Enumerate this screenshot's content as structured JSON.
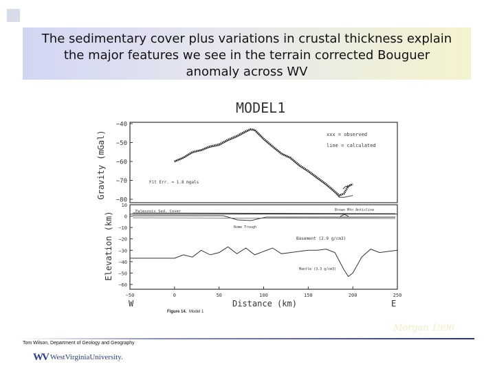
{
  "title": {
    "lines": [
      "The sedimentary cover plus variations in crustal thickness explain",
      "the major features we see in the terrain corrected Bouguer",
      "anomaly across WV"
    ]
  },
  "figure": {
    "model_title": "MODEL1",
    "gravity_label": "Gravity (mGal)",
    "elevation_label": "Elevation (km)",
    "x_label": "Distance (km)",
    "west": "W",
    "east": "E",
    "caption_bold": "Figure 14.",
    "caption_text": "Model 1",
    "legend_observed": "xxx = observed",
    "legend_calculated": "line = calculated",
    "rms_label": "Fit Err. = 1.8 mgals",
    "layer_paleozoic": "Paleozoic Sed. Cover",
    "layer_rome": "Rome Trough",
    "layer_basement": "Basement (2.9 g/cm3)",
    "layer_mantle": "Mantle (3.3 g/cm3)",
    "layer_brown": "Brown Mtn Anticline"
  },
  "chart_data": [
    {
      "type": "line",
      "title": "MODEL1",
      "xlabel": "",
      "ylabel": "Gravity (mGal)",
      "xlim": [
        -50,
        250
      ],
      "ylim": [
        -80,
        -40
      ],
      "yticks": [
        -40,
        -50,
        -60,
        -70,
        -80
      ],
      "series": [
        {
          "name": "observed",
          "x": [
            0,
            10,
            20,
            30,
            40,
            50,
            60,
            70,
            80,
            85,
            90,
            100,
            110,
            120,
            130,
            140,
            150,
            160,
            170,
            180,
            185,
            190,
            195,
            200
          ],
          "y": [
            -60,
            -58,
            -55,
            -54,
            -52,
            -51,
            -48.5,
            -46.5,
            -44,
            -43,
            -43.3,
            -48,
            -52,
            -56,
            -58,
            -62,
            -65,
            -68.5,
            -72,
            -76,
            -78,
            -77,
            -73,
            -72
          ]
        },
        {
          "name": "calculated",
          "x": [
            0,
            10,
            20,
            30,
            40,
            50,
            60,
            70,
            80,
            85,
            90,
            100,
            110,
            120,
            130,
            140,
            150,
            160,
            170,
            180,
            185,
            190,
            195,
            200
          ],
          "y": [
            -60,
            -58,
            -55.5,
            -54,
            -52.5,
            -51.5,
            -49,
            -47,
            -44.5,
            -43.2,
            -43.5,
            -48.5,
            -52.5,
            -55.5,
            -58.5,
            -62.5,
            -65.5,
            -69,
            -72.5,
            -76.5,
            -79,
            -79,
            -78.5,
            -78
          ]
        }
      ]
    },
    {
      "type": "line",
      "title": "",
      "xlabel": "Distance (km)",
      "ylabel": "Elevation (km)",
      "xlim": [
        -50,
        250
      ],
      "ylim": [
        -60,
        10
      ],
      "xticks": [
        -50,
        0,
        50,
        100,
        150,
        200,
        250
      ],
      "yticks": [
        10,
        0,
        -10,
        -20,
        -30,
        -40,
        -50,
        -60
      ],
      "series": [
        {
          "name": "",
          "x": [
            -50,
            0,
            10,
            20,
            30,
            40,
            50,
            60,
            70,
            80,
            90,
            100,
            110,
            120,
            130,
            140,
            150,
            160,
            170,
            180,
            190,
            195,
            200,
            210,
            220,
            230,
            240,
            250
          ],
          "y": [
            -37,
            -37,
            -34,
            -36,
            -30,
            -34,
            -32,
            -27,
            -33,
            -28,
            -34,
            -31,
            -28,
            -33,
            -32,
            -31,
            -30,
            -30,
            -29,
            -32,
            -47,
            -53,
            -50,
            -36,
            -29,
            -32,
            -31,
            -30
          ]
        }
      ]
    }
  ],
  "credit": "Morgan 1996",
  "footer": {
    "author": "Tom Wilson, Department of Geology and Geography",
    "university": "WestVirginiaUniversity."
  },
  "colors": {
    "title_left": "#d2d6f2",
    "title_right": "#f4f3cf",
    "logo": "#2b3a8c",
    "footer_line": "#2c2f78"
  }
}
